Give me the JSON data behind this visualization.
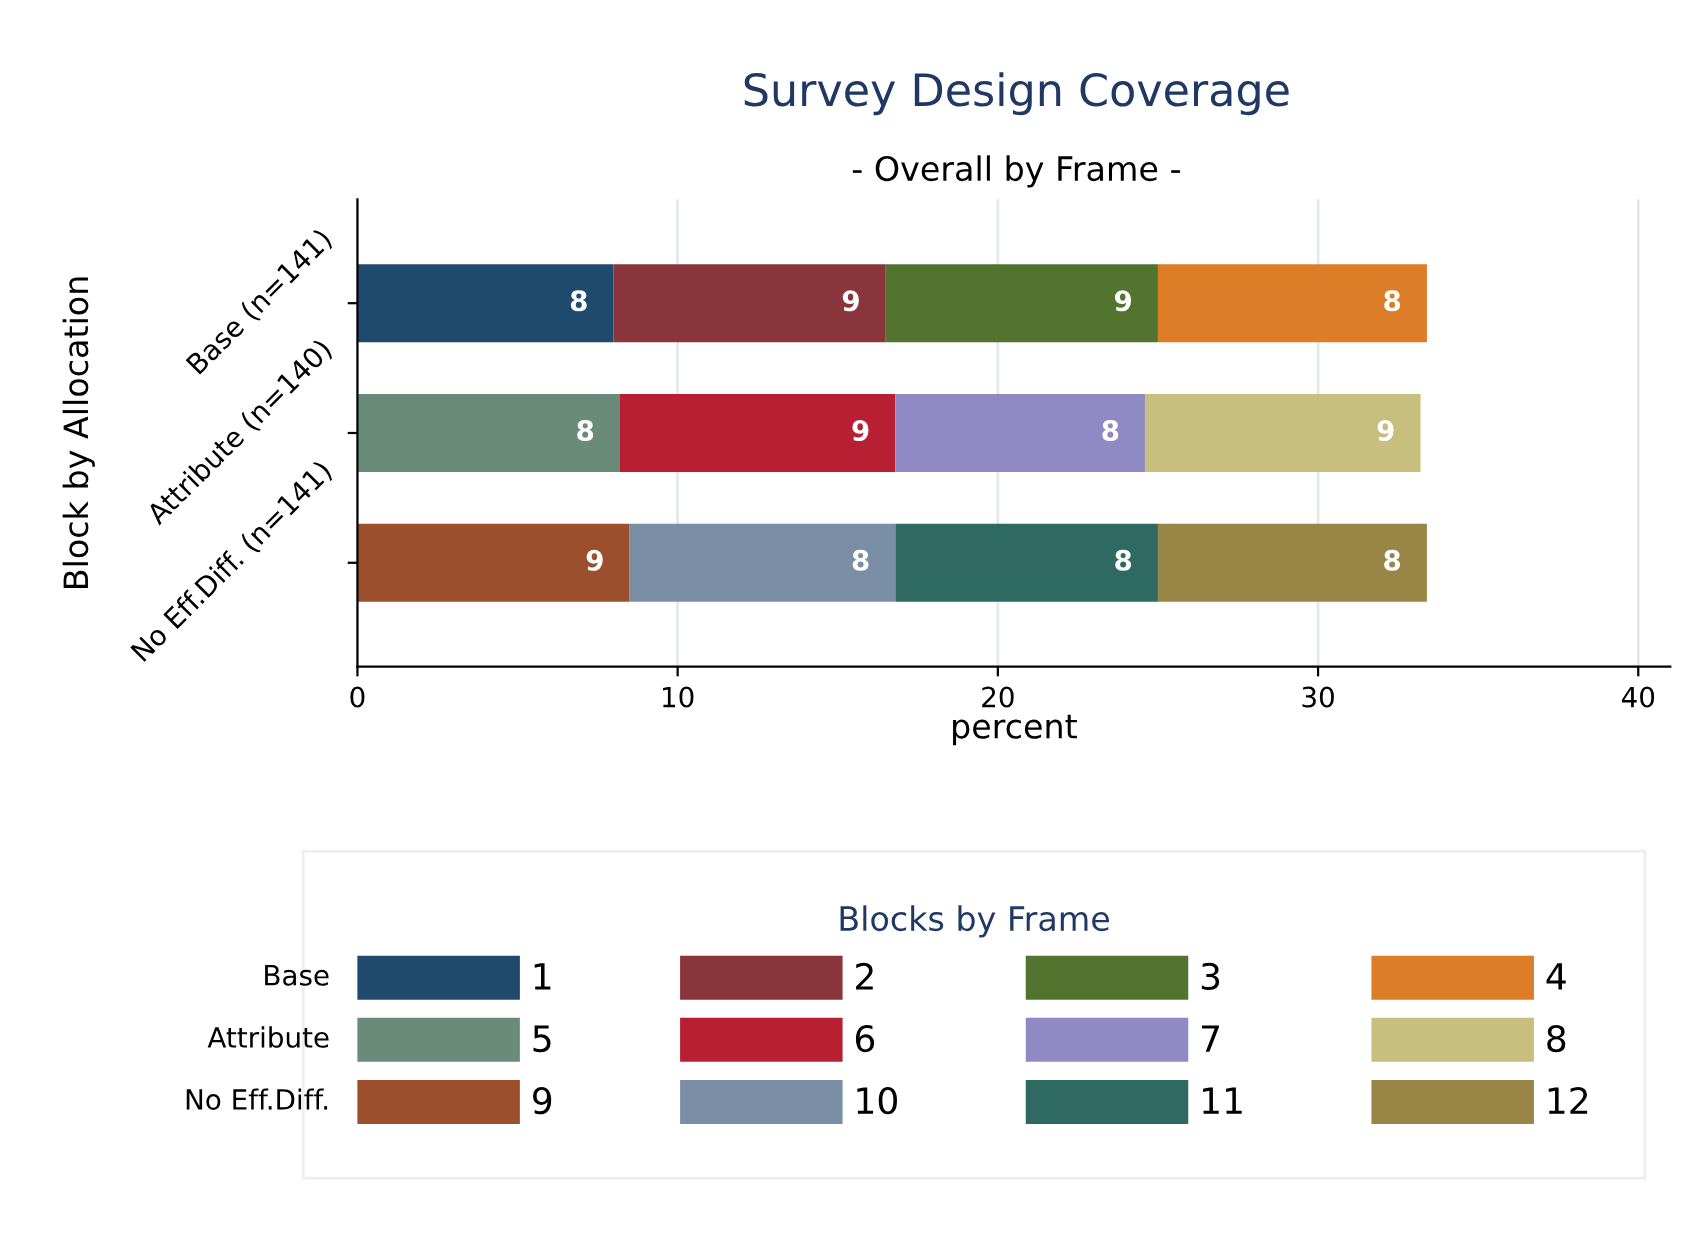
{
  "chart_data": {
    "type": "bar",
    "orientation": "horizontal",
    "stacked": true,
    "title": "Survey Design Coverage",
    "subtitle": "- Overall by Frame -",
    "xlabel": "percent",
    "ylabel": "Block by Allocation",
    "legend_title": "Blocks by Frame",
    "categories": [
      "Base (n=141)",
      "Attribute (n=140)",
      "No Eff.Diff. (n=141)"
    ],
    "series": [
      {
        "name": "1",
        "color": "#1f4a6e",
        "values": [
          8.0,
          null,
          null
        ],
        "value_labels": [
          "8",
          null,
          null
        ]
      },
      {
        "name": "5",
        "color": "#6a8b7a",
        "values": [
          null,
          8.2,
          null
        ],
        "value_labels": [
          null,
          "8",
          null
        ]
      },
      {
        "name": "9",
        "color": "#9c4f2c",
        "values": [
          null,
          null,
          8.5
        ],
        "value_labels": [
          null,
          null,
          "9"
        ]
      },
      {
        "name": "2",
        "color": "#8a343c",
        "values": [
          8.5,
          null,
          null
        ],
        "value_labels": [
          "9",
          null,
          null
        ]
      },
      {
        "name": "6",
        "color": "#b81f33",
        "values": [
          null,
          8.6,
          null
        ],
        "value_labels": [
          null,
          "9",
          null
        ]
      },
      {
        "name": "10",
        "color": "#7a8fa6",
        "values": [
          null,
          null,
          8.3
        ],
        "value_labels": [
          null,
          null,
          "8"
        ]
      },
      {
        "name": "3",
        "color": "#52742f",
        "values": [
          8.5,
          null,
          null
        ],
        "value_labels": [
          "9",
          null,
          null
        ]
      },
      {
        "name": "7",
        "color": "#8f89c4",
        "values": [
          null,
          7.8,
          null
        ],
        "value_labels": [
          null,
          "8",
          null
        ]
      },
      {
        "name": "11",
        "color": "#2e6a62",
        "values": [
          null,
          null,
          8.2
        ],
        "value_labels": [
          null,
          null,
          "8"
        ]
      },
      {
        "name": "4",
        "color": "#de7d27",
        "values": [
          8.4,
          null,
          null
        ],
        "value_labels": [
          "8",
          null,
          null
        ]
      },
      {
        "name": "8",
        "color": "#c8bf7e",
        "values": [
          null,
          8.6,
          null
        ],
        "value_labels": [
          null,
          "9",
          null
        ]
      },
      {
        "name": "12",
        "color": "#998646",
        "values": [
          null,
          null,
          8.4
        ],
        "value_labels": [
          null,
          null,
          "8"
        ]
      }
    ],
    "xlim": [
      0,
      41
    ],
    "xticks": [
      0,
      10,
      20,
      30,
      40
    ],
    "grid": "x",
    "legend": "bottom",
    "annotations": [
      "Base",
      "Attribute",
      "No Eff.Diff."
    ]
  }
}
